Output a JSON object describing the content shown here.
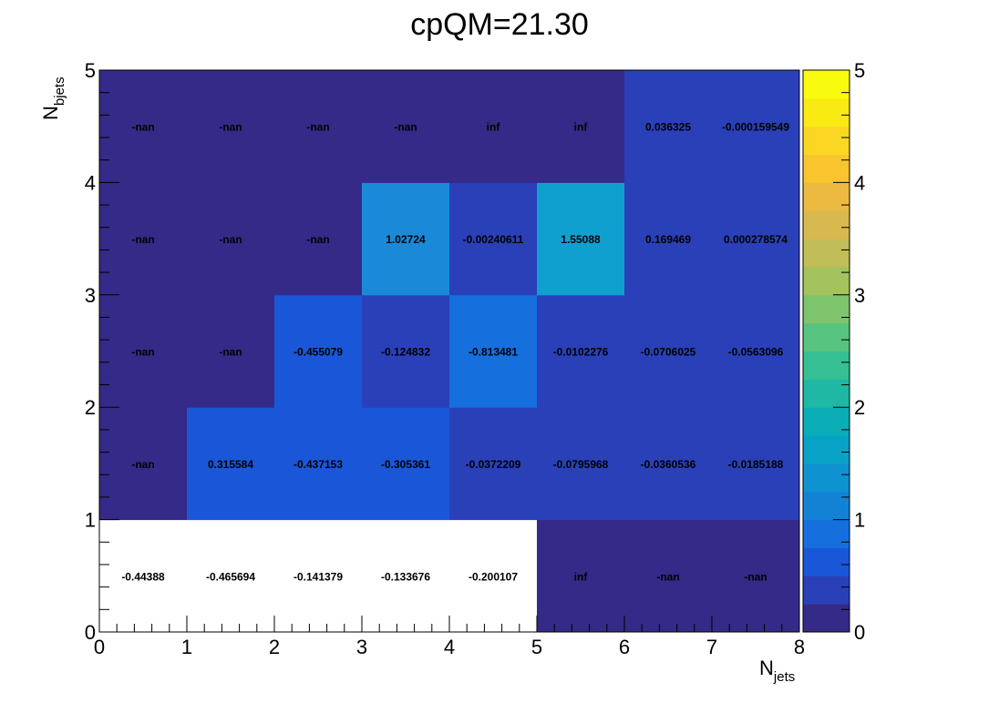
{
  "chart_data": {
    "type": "heatmap",
    "title": "cpQM=21.30",
    "xlabel": {
      "main": "N",
      "sub": "jets"
    },
    "ylabel": {
      "main": "N",
      "sub": "bjets"
    },
    "xlim": [
      0,
      8
    ],
    "ylim": [
      0,
      5
    ],
    "zlim": [
      0,
      5
    ],
    "x_ticks": [
      "0",
      "1",
      "2",
      "3",
      "4",
      "5",
      "6",
      "7",
      "8"
    ],
    "y_ticks": [
      "0",
      "1",
      "2",
      "3",
      "4",
      "5"
    ],
    "z_ticks": [
      "0",
      "1",
      "2",
      "3",
      "4",
      "5"
    ],
    "rows": [
      {
        "y_bin": [
          0,
          1
        ],
        "labels": [
          "-0.44388",
          "-0.465694",
          "-0.141379",
          "-0.133676",
          "-0.200107",
          "inf",
          "-nan",
          "-nan"
        ],
        "values": [
          -0.44388,
          -0.465694,
          -0.141379,
          -0.133676,
          -0.200107,
          null,
          null,
          null
        ]
      },
      {
        "y_bin": [
          1,
          2
        ],
        "labels": [
          "-nan",
          "0.315584",
          "-0.437153",
          "-0.305361",
          "-0.0372209",
          "-0.0795968",
          "-0.0360536",
          "-0.0185188"
        ],
        "values": [
          null,
          0.315584,
          -0.437153,
          -0.305361,
          -0.0372209,
          -0.0795968,
          -0.0360536,
          -0.0185188
        ]
      },
      {
        "y_bin": [
          2,
          3
        ],
        "labels": [
          "-nan",
          "-nan",
          "-0.455079",
          "-0.124832",
          "-0.813481",
          "-0.0102276",
          "-0.0706025",
          "-0.0563096"
        ],
        "values": [
          null,
          null,
          -0.455079,
          -0.124832,
          -0.813481,
          -0.0102276,
          -0.0706025,
          -0.0563096
        ]
      },
      {
        "y_bin": [
          3,
          4
        ],
        "labels": [
          "-nan",
          "-nan",
          "-nan",
          "1.02724",
          "-0.00240611",
          "1.55088",
          "0.169469",
          "0.000278574"
        ],
        "values": [
          null,
          null,
          null,
          1.02724,
          -0.00240611,
          1.55088,
          0.169469,
          0.000278574
        ]
      },
      {
        "y_bin": [
          4,
          5
        ],
        "labels": [
          "-nan",
          "-nan",
          "-nan",
          "-nan",
          "inf",
          "inf",
          "0.036325",
          "-0.000159549"
        ],
        "values": [
          null,
          null,
          null,
          null,
          null,
          null,
          0.036325,
          -0.000159549
        ]
      }
    ],
    "cell_colors": [
      [
        "#ffffff",
        "#ffffff",
        "#ffffff",
        "#ffffff",
        "#ffffff",
        "#352a87",
        "#352a87",
        "#352a87"
      ],
      [
        "#352a87",
        "#1a57d8",
        "#1a57d8",
        "#1a57d8",
        "#2a40b8",
        "#2a40b8",
        "#2a40b8",
        "#2a40b8"
      ],
      [
        "#352a87",
        "#352a87",
        "#1a57d8",
        "#2a40b8",
        "#1570de",
        "#2a40b8",
        "#2a40b8",
        "#2a40b8"
      ],
      [
        "#352a87",
        "#352a87",
        "#352a87",
        "#1a8ad8",
        "#2a40b8",
        "#10a0d0",
        "#2a40b8",
        "#2a40b8"
      ],
      [
        "#352a87",
        "#352a87",
        "#352a87",
        "#352a87",
        "#352a87",
        "#352a87",
        "#2a40b8",
        "#2a40b8"
      ]
    ],
    "palette": [
      "#352a87",
      "#2a40b8",
      "#1a57d8",
      "#1570de",
      "#1283d4",
      "#0e93d0",
      "#08a2c7",
      "#0aadb5",
      "#1eb8a4",
      "#36bf92",
      "#58c37f",
      "#7ec46c",
      "#a2c35e",
      "#c1bd58",
      "#d7b950",
      "#ecba40",
      "#f8c52e",
      "#fbd724",
      "#f9ea14",
      "#f9fb0e"
    ]
  }
}
